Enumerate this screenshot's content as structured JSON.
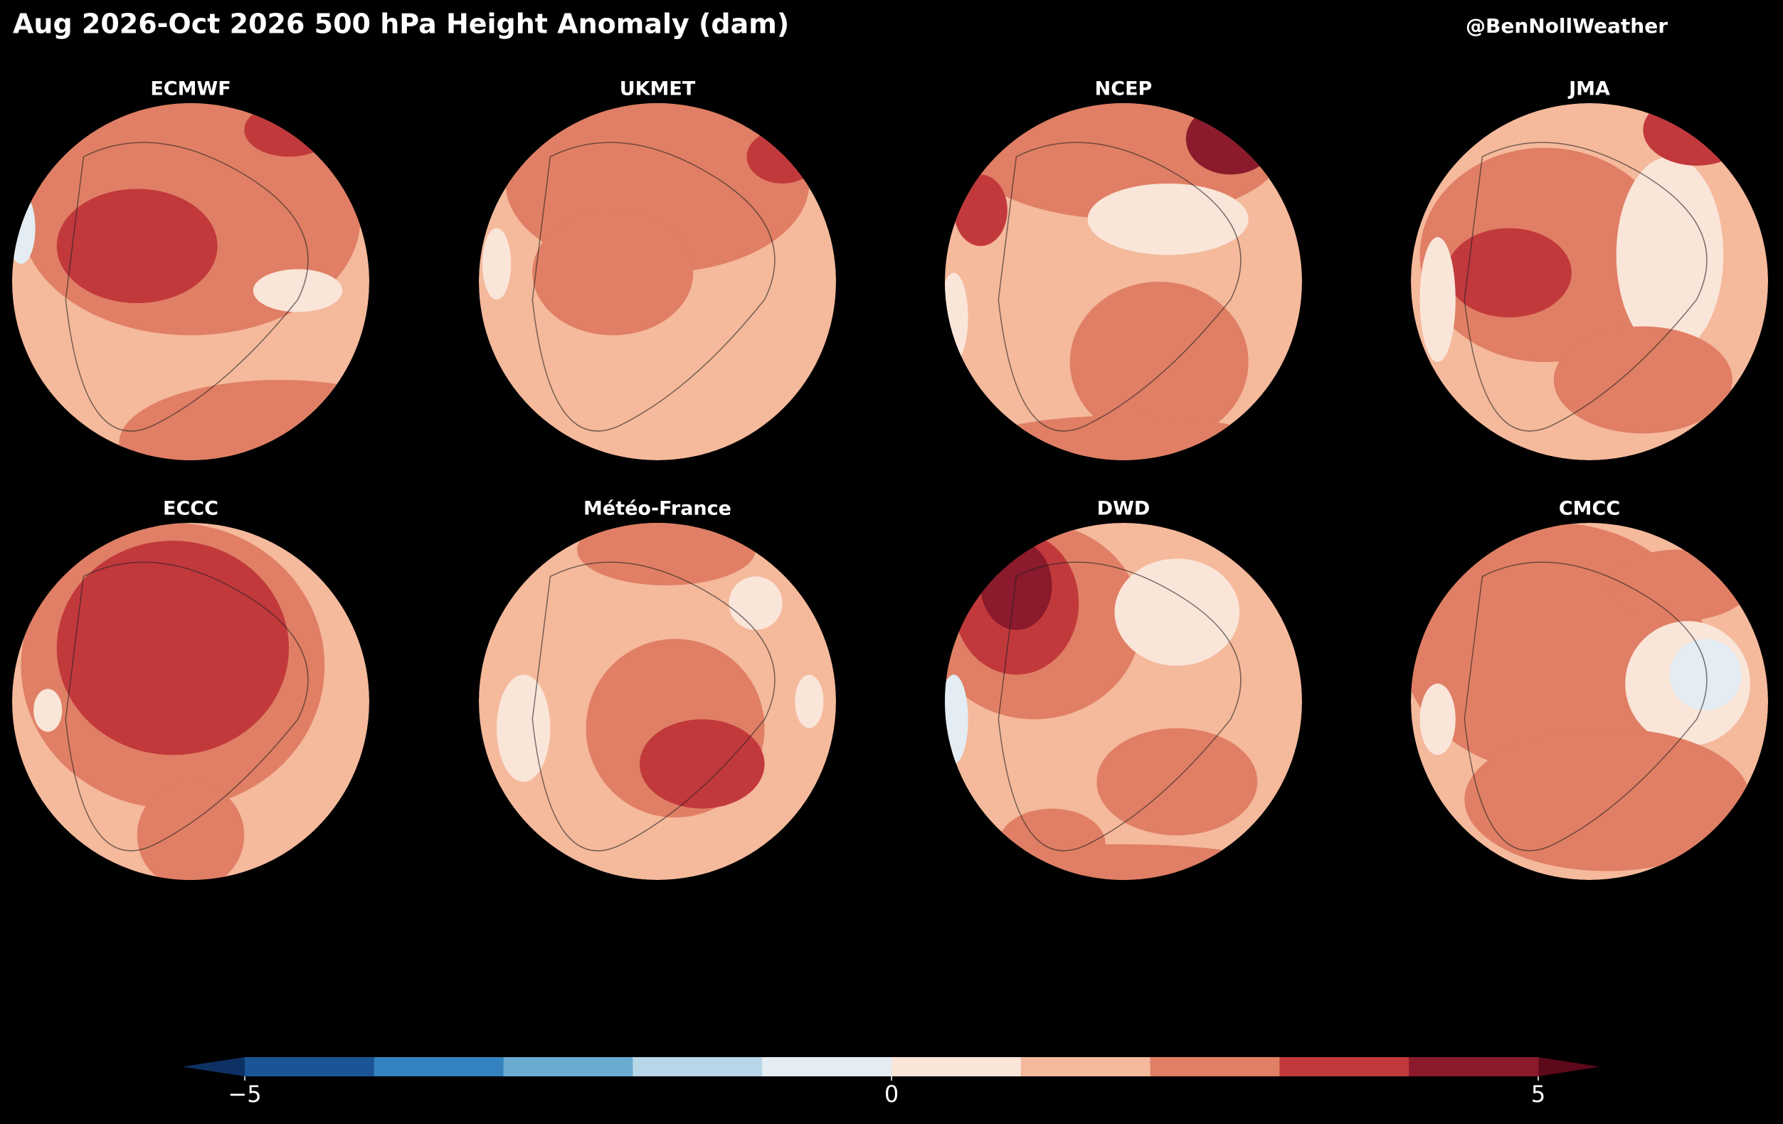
{
  "title": "Aug 2026-Oct 2026 500 hPa Height Anomaly (dam)",
  "credit": "@BenNollWeather",
  "panels": [
    {
      "title": "ECMWF"
    },
    {
      "title": "UKMET"
    },
    {
      "title": "NCEP"
    },
    {
      "title": "JMA"
    },
    {
      "title": "ECCC"
    },
    {
      "title": "Météo-France"
    },
    {
      "title": "DWD"
    },
    {
      "title": "CMCC"
    }
  ],
  "colorbar": {
    "lim": [
      -5,
      5
    ],
    "levels": [
      -5,
      -4,
      -3,
      -2,
      -1,
      0,
      1,
      2,
      3,
      4,
      5
    ],
    "colors": [
      "#1c5596",
      "#3582c0",
      "#6aabd0",
      "#b7d6e8",
      "#e3edf3",
      "#fae5d9",
      "#f5b99c",
      "#e07f65",
      "#c2393c",
      "#8b1a2c"
    ],
    "under_color": "#0e3163",
    "over_color": "#5c0a1a",
    "ticks": [
      {
        "value": -5,
        "label": "−5"
      },
      0,
      5
    ]
  }
}
